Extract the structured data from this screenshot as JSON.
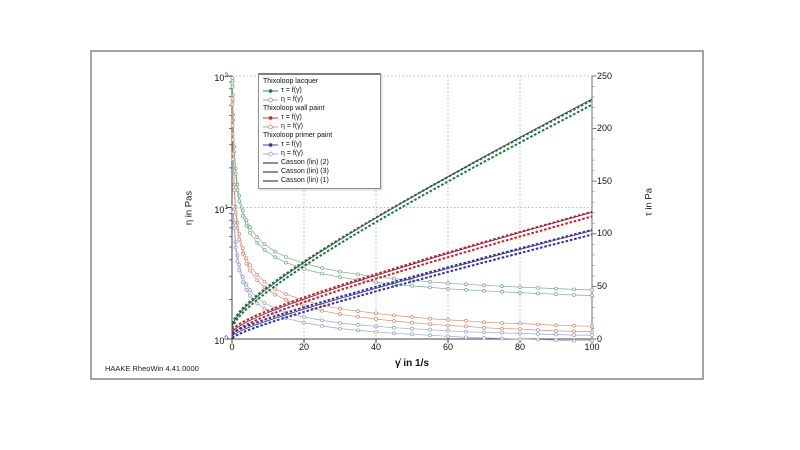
{
  "app": {
    "footer": "HAAKE RheoWin 4.41.0000"
  },
  "chart_data": {
    "type": "line",
    "title": "",
    "xlabel": "γ̇ in 1/s",
    "ylabel_left": "η in Pas",
    "ylabel_right": "τ in Pa",
    "x_axis": {
      "min": 0,
      "max": 100,
      "ticks": [
        0,
        20,
        40,
        60,
        80,
        100
      ],
      "grid_at": [
        20,
        40,
        60,
        80
      ]
    },
    "y_left_axis": {
      "scale": "log",
      "min": 1,
      "max": 100,
      "tick_exponents": [
        0,
        1,
        2
      ],
      "grid_at": [
        10
      ]
    },
    "y_right_axis": {
      "min": 0,
      "max": 250,
      "ticks": [
        0,
        50,
        100,
        150,
        200,
        250
      ],
      "minor_step": 10
    },
    "x_full": [
      0.1,
      0.15,
      0.2,
      0.3,
      0.6,
      1,
      1.5,
      2,
      3,
      4,
      5,
      7,
      9,
      12,
      15,
      20,
      25,
      30,
      35,
      40,
      45,
      50,
      55,
      60,
      65,
      70,
      75,
      80,
      85,
      90,
      95,
      100
    ],
    "x_primer_eta": [
      0.3,
      0.6,
      1,
      1.5,
      2,
      3,
      4,
      5,
      7,
      9,
      12,
      15,
      20,
      25,
      30,
      35,
      40,
      45,
      50,
      55,
      60,
      65,
      70,
      75,
      80,
      85,
      90,
      95,
      100
    ],
    "series": [
      {
        "name": "lacquer-eta",
        "sample": "Thixoloop lacquer",
        "quantity": "η = f(γ̇)",
        "axis": "left",
        "color": "#7fae8c",
        "style": "circles",
        "loop_gap_mul": 1.05,
        "x_key": "x_full",
        "y": [
          92,
          87,
          68,
          48.3,
          27.7,
          18.9,
          14.2,
          11.7,
          9.07,
          7.65,
          6.74,
          5.66,
          5.01,
          4.39,
          4.0,
          3.58,
          3.3,
          3.1,
          2.95,
          2.83,
          2.74,
          2.66,
          2.59,
          2.53,
          2.48,
          2.44,
          2.4,
          2.36,
          2.33,
          2.3,
          2.27,
          2.25
        ]
      },
      {
        "name": "wallpaint-eta",
        "sample": "Thixoloop wall paint",
        "quantity": "η = f(γ̇)",
        "axis": "left",
        "color": "#d4907c",
        "style": "circles",
        "loop_gap_mul": 1.05,
        "x_key": "x_full",
        "y": [
          64,
          44,
          34.4,
          24.4,
          14.2,
          9.6,
          7.3,
          6,
          4.67,
          3.93,
          3.48,
          2.93,
          2.6,
          2.28,
          2.09,
          1.87,
          1.72,
          1.62,
          1.55,
          1.49,
          1.44,
          1.4,
          1.36,
          1.33,
          1.31,
          1.28,
          1.26,
          1.25,
          1.23,
          1.21,
          1.2,
          1.19
        ]
      },
      {
        "name": "primer-eta",
        "sample": "Thixoloop primer paint",
        "quantity": "η = f(γ̇)",
        "axis": "left",
        "color": "#9aa5cb",
        "style": "circles",
        "loop_gap_mul": 1.05,
        "x_key": "x_primer_eta",
        "y": [
          9.7,
          7.3,
          5.2,
          4.1,
          3.5,
          2.83,
          2.48,
          2.24,
          1.96,
          1.79,
          1.63,
          1.51,
          1.4,
          1.32,
          1.26,
          1.22,
          1.19,
          1.16,
          1.14,
          1.12,
          1.1,
          1.08,
          1.07,
          1.06,
          1.05,
          1.04,
          1.03,
          1.02,
          1.02
        ]
      },
      {
        "name": "lacquer-tau",
        "sample": "Thixoloop lacquer",
        "quantity": "τ = f(γ̇)",
        "axis": "right",
        "color": "#1e7b34",
        "style": "dash",
        "loop_gap_abs": 2.2,
        "x_key": "x_full",
        "y": [
          12.5,
          13.1,
          13.6,
          14.5,
          16.6,
          18.9,
          21.3,
          23.4,
          27.2,
          30.6,
          33.7,
          39.6,
          45.1,
          52.7,
          60,
          71.5,
          82.4,
          93,
          103.3,
          113.3,
          123.2,
          132.9,
          142.5,
          151.9,
          161.3,
          170.6,
          179.8,
          188.9,
          198,
          207,
          215.9,
          224.8
        ]
      },
      {
        "name": "wallpaint-tau",
        "sample": "Thixoloop wall paint",
        "quantity": "τ = f(γ̇)",
        "axis": "right",
        "color": "#cc2222",
        "style": "dash",
        "loop_gap_abs": 2.2,
        "x_key": "x_full",
        "y": [
          6.4,
          6.6,
          6.9,
          7.3,
          8.5,
          9.6,
          10.9,
          12,
          14,
          15.7,
          17.4,
          20.5,
          23.4,
          27.4,
          31.3,
          37.3,
          43.1,
          48.7,
          54.2,
          59.5,
          64.7,
          69.9,
          75,
          80,
          85,
          89.9,
          94.8,
          99.6,
          104.4,
          109.2,
          114,
          118.7
        ]
      },
      {
        "name": "primer-tau",
        "sample": "Thixoloop primer paint",
        "quantity": "τ = f(γ̇)",
        "axis": "right",
        "color": "#2a35a0",
        "style": "dash",
        "loop_gap_abs": 2.2,
        "x_key": "x_full",
        "y": [
          2.9,
          3.1,
          3.2,
          3.6,
          4.4,
          5.2,
          6.1,
          7,
          8.5,
          9.9,
          11.2,
          13.7,
          16.1,
          19.5,
          22.7,
          28,
          33,
          37.9,
          42.7,
          47.5,
          52.2,
          56.8,
          61.4,
          66,
          70.5,
          75,
          79.5,
          83.9,
          88.3,
          92.7,
          97.1,
          101.5
        ]
      },
      {
        "name": "casson-2",
        "quantity": "Casson (lin) (2)",
        "axis": "right",
        "color": "#53346d",
        "style": "line",
        "x_key": "x_full",
        "y_key": "lacquer-tau",
        "y_scale": 1.015
      },
      {
        "name": "casson-3",
        "quantity": "Casson (lin) (3)",
        "axis": "right",
        "color": "#53346d",
        "style": "line",
        "x_key": "x_full",
        "y_key": "wallpaint-tau",
        "y_scale": 1.015
      },
      {
        "name": "casson-1",
        "quantity": "Casson (lin) (1)",
        "axis": "right",
        "color": "#53346d",
        "style": "line",
        "x_key": "x_full",
        "y_key": "primer-tau",
        "y_scale": 1.015
      }
    ],
    "legend": [
      {
        "kind": "header",
        "label": "Thixoloop lacquer"
      },
      {
        "kind": "item",
        "label": "τ = f(γ̇)",
        "swatch": "square",
        "color": "#1e7b34"
      },
      {
        "kind": "item",
        "label": "η = f(γ̇)",
        "swatch": "circle",
        "color": "#7fae8c"
      },
      {
        "kind": "header",
        "label": "Thixoloop wall paint"
      },
      {
        "kind": "item",
        "label": "τ = f(γ̇)",
        "swatch": "square",
        "color": "#cc2222"
      },
      {
        "kind": "item",
        "label": "η = f(γ̇)",
        "swatch": "circle",
        "color": "#d4907c"
      },
      {
        "kind": "header",
        "label": "Thixoloop primer paint"
      },
      {
        "kind": "item",
        "label": "τ = f(γ̇)",
        "swatch": "square",
        "color": "#2a35a0"
      },
      {
        "kind": "item",
        "label": "η = f(γ̇)",
        "swatch": "circle",
        "color": "#9aa5cb"
      },
      {
        "kind": "item",
        "label": "Casson (lin) (2)",
        "swatch": "line",
        "color": "#53346d"
      },
      {
        "kind": "item",
        "label": "Casson (lin) (3)",
        "swatch": "line",
        "color": "#53346d"
      },
      {
        "kind": "item",
        "label": "Casson (lin) (1)",
        "swatch": "line",
        "color": "#53346d"
      }
    ]
  }
}
